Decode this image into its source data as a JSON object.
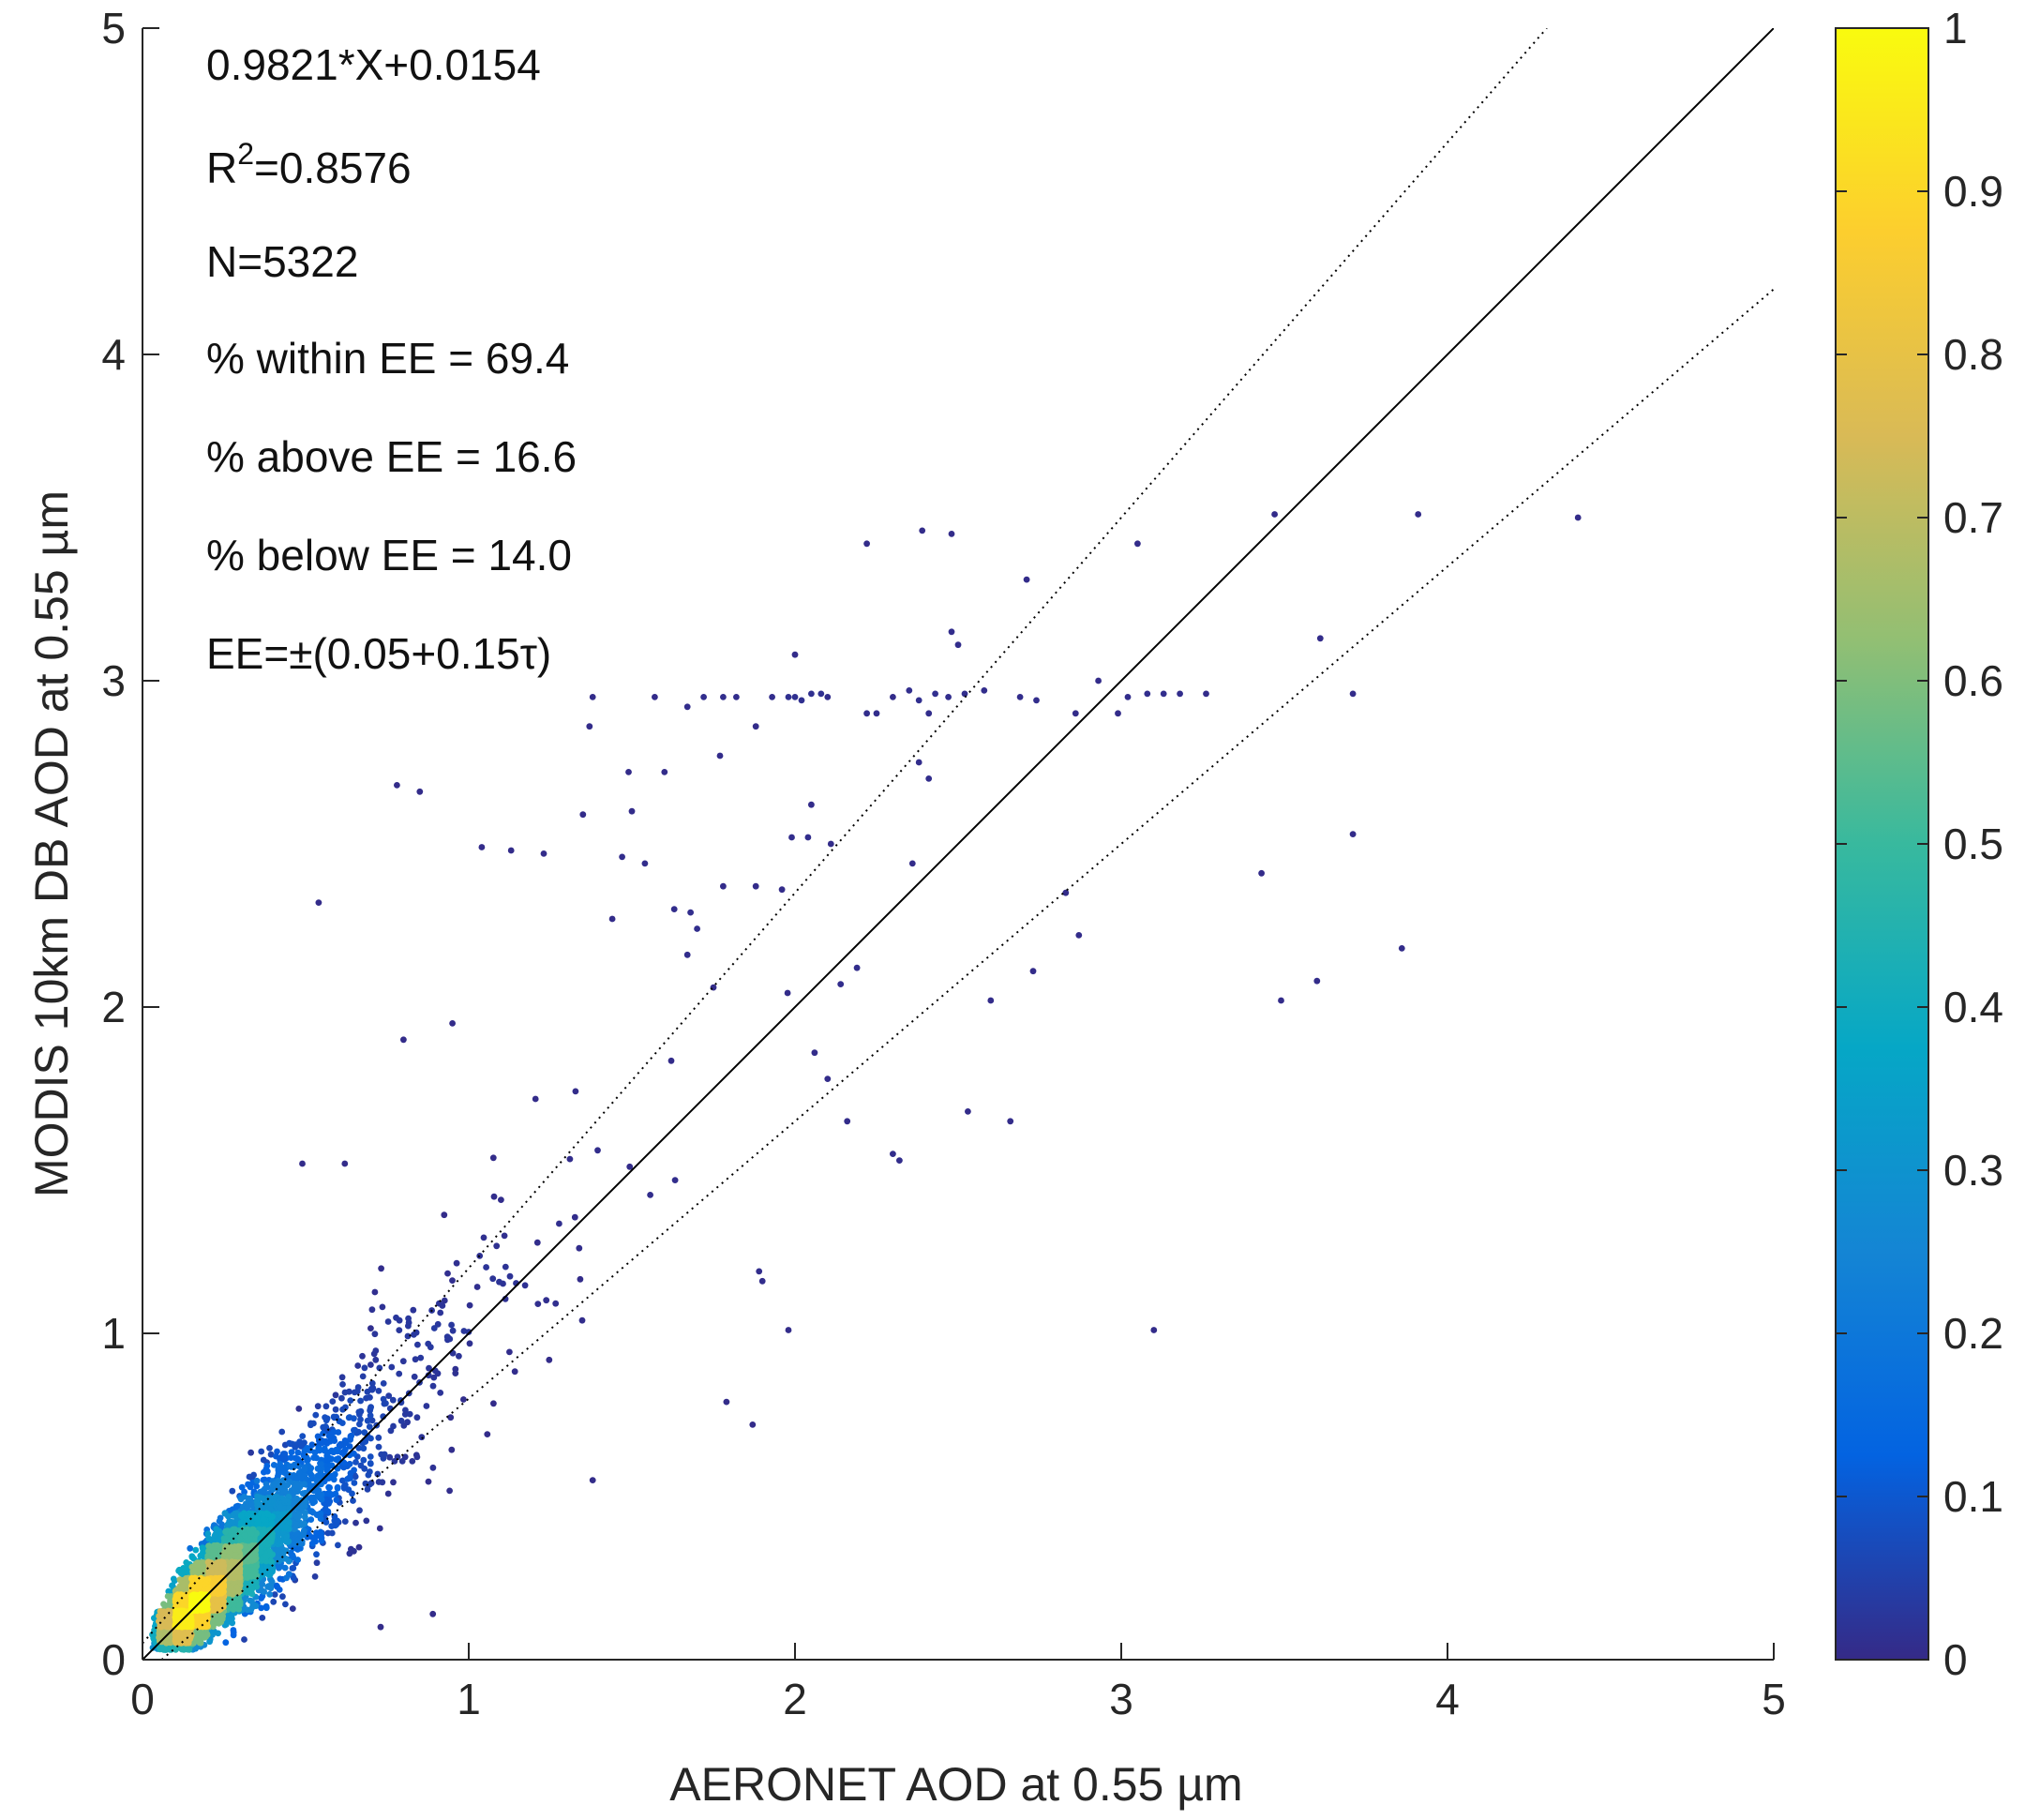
{
  "chart_data": {
    "type": "scatter",
    "title": "",
    "xlabel": "AERONET AOD at 0.55 µm",
    "ylabel": "MODIS 10km DB AOD at 0.55 µm",
    "xlim": [
      0,
      5
    ],
    "ylim": [
      0,
      5
    ],
    "xticks": [
      0,
      1,
      2,
      3,
      4,
      5
    ],
    "yticks": [
      0,
      1,
      2,
      3,
      4,
      5
    ],
    "xtick_labels": [
      "0",
      "1",
      "2",
      "3",
      "4",
      "5"
    ],
    "ytick_labels": [
      "0",
      "1",
      "2",
      "3",
      "4",
      "5"
    ],
    "grid": false,
    "colorbar": {
      "range": [
        0,
        1
      ],
      "ticks": [
        0,
        0.1,
        0.2,
        0.3,
        0.4,
        0.5,
        0.6,
        0.7,
        0.8,
        0.9,
        1
      ],
      "tick_labels": [
        "0",
        "0.1",
        "0.2",
        "0.3",
        "0.4",
        "0.5",
        "0.6",
        "0.7",
        "0.8",
        "0.9",
        "1"
      ],
      "colormap": "parula",
      "colormap_stops": [
        "#352a87",
        "#0363e1",
        "#1485d4",
        "#06a7c6",
        "#38b99e",
        "#92bf73",
        "#d9ba56",
        "#fcce2e",
        "#f9fb0e"
      ]
    },
    "reference_lines": [
      {
        "name": "1:1 line",
        "slope": 1.0,
        "intercept": 0.0,
        "style": "solid",
        "color": "#000000"
      },
      {
        "name": "EE upper",
        "slope": 1.15,
        "intercept": 0.05,
        "style": "dotted",
        "color": "#000000"
      },
      {
        "name": "EE lower",
        "slope": 0.85,
        "intercept": -0.05,
        "style": "dotted",
        "color": "#000000"
      }
    ],
    "annotations": {
      "fit": "0.9821*X+0.0154",
      "r2_prefix": "R",
      "r2_sup": "2",
      "r2_value": "=0.8576",
      "n": "N=5322",
      "within": "% within EE = 69.4",
      "above": "% above EE = 16.6",
      "below": "% below EE = 14.0",
      "ee": "EE=±(0.05+0.15τ)"
    },
    "regression": {
      "slope": 0.9821,
      "intercept": 0.0154,
      "r2": 0.8576,
      "n": 5322
    },
    "outlier_points": [
      [
        0.78,
        2.68
      ],
      [
        0.85,
        2.66
      ],
      [
        0.54,
        2.32
      ],
      [
        0.49,
        1.52
      ],
      [
        0.62,
        1.52
      ],
      [
        0.8,
        1.9
      ],
      [
        0.95,
        1.95
      ],
      [
        1.04,
        2.49
      ],
      [
        1.13,
        2.48
      ],
      [
        1.23,
        2.47
      ],
      [
        1.35,
        2.59
      ],
      [
        1.37,
        2.86
      ],
      [
        1.38,
        2.95
      ],
      [
        1.47,
        2.46
      ],
      [
        1.49,
        2.72
      ],
      [
        1.5,
        2.6
      ],
      [
        1.6,
        2.72
      ],
      [
        1.57,
        2.95
      ],
      [
        1.67,
        2.92
      ],
      [
        1.72,
        2.95
      ],
      [
        1.78,
        2.95
      ],
      [
        1.82,
        2.95
      ],
      [
        1.88,
        2.86
      ],
      [
        1.93,
        2.95
      ],
      [
        1.98,
        2.95
      ],
      [
        2.0,
        2.95
      ],
      [
        2.02,
        2.94
      ],
      [
        2.05,
        2.96
      ],
      [
        2.08,
        2.96
      ],
      [
        2.1,
        2.95
      ],
      [
        2.22,
        2.9
      ],
      [
        2.25,
        2.9
      ],
      [
        2.3,
        2.95
      ],
      [
        2.35,
        2.97
      ],
      [
        2.38,
        2.94
      ],
      [
        2.41,
        2.9
      ],
      [
        2.43,
        2.96
      ],
      [
        2.47,
        2.95
      ],
      [
        2.52,
        2.96
      ],
      [
        2.58,
        2.97
      ],
      [
        2.69,
        2.95
      ],
      [
        2.74,
        2.94
      ],
      [
        2.86,
        2.9
      ],
      [
        2.93,
        3.0
      ],
      [
        2.99,
        2.9
      ],
      [
        3.02,
        2.95
      ],
      [
        3.08,
        2.96
      ],
      [
        3.13,
        2.96
      ],
      [
        3.18,
        2.96
      ],
      [
        3.26,
        2.96
      ],
      [
        2.0,
        3.08
      ],
      [
        2.22,
        3.42
      ],
      [
        2.39,
        3.46
      ],
      [
        2.48,
        3.45
      ],
      [
        2.48,
        3.15
      ],
      [
        2.5,
        3.11
      ],
      [
        2.71,
        3.31
      ],
      [
        3.05,
        3.42
      ],
      [
        3.47,
        3.51
      ],
      [
        3.91,
        3.51
      ],
      [
        4.4,
        3.5
      ],
      [
        3.61,
        3.13
      ],
      [
        3.71,
        2.96
      ],
      [
        3.71,
        2.53
      ],
      [
        3.43,
        2.41
      ],
      [
        3.6,
        2.08
      ],
      [
        3.49,
        2.02
      ],
      [
        3.86,
        2.18
      ],
      [
        2.83,
        2.35
      ],
      [
        2.87,
        2.22
      ],
      [
        2.73,
        2.11
      ],
      [
        2.6,
        2.02
      ],
      [
        2.53,
        1.68
      ],
      [
        2.32,
        1.53
      ],
      [
        2.3,
        1.55
      ],
      [
        2.66,
        1.65
      ],
      [
        3.1,
        1.01
      ],
      [
        1.98,
        1.01
      ],
      [
        1.9,
        1.16
      ],
      [
        1.89,
        1.19
      ],
      [
        1.79,
        0.79
      ],
      [
        1.87,
        0.72
      ],
      [
        1.38,
        0.55
      ],
      [
        0.89,
        0.14
      ],
      [
        0.73,
        0.1
      ],
      [
        2.04,
        2.52
      ],
      [
        2.05,
        2.62
      ],
      [
        1.99,
        2.52
      ],
      [
        1.77,
        2.77
      ],
      [
        2.11,
        2.5
      ],
      [
        1.44,
        2.27
      ],
      [
        1.63,
        2.3
      ],
      [
        1.68,
        2.29
      ],
      [
        1.67,
        2.16
      ],
      [
        1.75,
        2.06
      ],
      [
        1.7,
        2.24
      ],
      [
        1.96,
        2.36
      ],
      [
        2.36,
        2.44
      ],
      [
        2.41,
        2.7
      ],
      [
        2.38,
        2.75
      ],
      [
        2.19,
        2.12
      ],
      [
        2.14,
        2.07
      ],
      [
        2.06,
        1.86
      ],
      [
        2.1,
        1.78
      ],
      [
        2.16,
        1.65
      ],
      [
        1.78,
        2.37
      ],
      [
        1.88,
        2.37
      ],
      [
        1.54,
        2.44
      ]
    ],
    "scatter_model": "5322 points clustered along y≈0.98x+0.015, densest near (0.2, 0.2), color = normalized point density"
  }
}
